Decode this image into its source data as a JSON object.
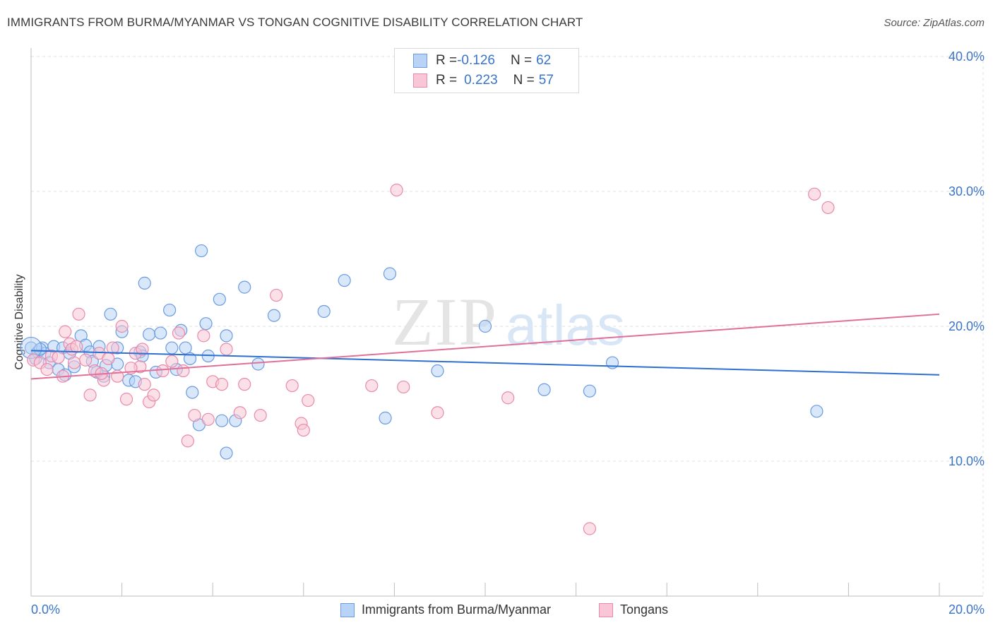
{
  "title": "IMMIGRANTS FROM BURMA/MYANMAR VS TONGAN COGNITIVE DISABILITY CORRELATION CHART",
  "source": "Source: ZipAtlas.com",
  "watermark": {
    "zip": "ZIP",
    "atlas": "atlas"
  },
  "colors": {
    "blue_fill": "#b8d3f5",
    "blue_stroke": "#6a9be0",
    "blue_line": "#2e6fd0",
    "pink_fill": "#f8c6d6",
    "pink_stroke": "#e98aaa",
    "pink_line": "#e0709a",
    "tick_text": "#3a74c8",
    "grid": "#e2e2e2"
  },
  "legend": {
    "rows": [
      {
        "r_label": "R = ",
        "r_value": "-0.126",
        "n_label": "N = ",
        "n_value": "62"
      },
      {
        "r_label": "R = ",
        "r_value": "0.223",
        "n_label": "N = ",
        "n_value": "57"
      }
    ],
    "bottom": [
      "Immigrants from Burma/Myanmar",
      "Tongans"
    ]
  },
  "chart_data": {
    "type": "scatter",
    "title": "IMMIGRANTS FROM BURMA/MYANMAR VS TONGAN COGNITIVE DISABILITY CORRELATION CHART",
    "xlabel": "",
    "ylabel": "Cognitive Disability",
    "xlim": [
      0,
      20
    ],
    "ylim": [
      0,
      41
    ],
    "x_tick_labels": [
      "0.0%",
      "20.0%"
    ],
    "y_ticks": [
      10,
      20,
      30,
      40
    ],
    "y_tick_labels": [
      "10.0%",
      "20.0%",
      "30.0%",
      "40.0%"
    ],
    "grid": true,
    "legend_placement": "top-center",
    "series": [
      {
        "name": "Immigrants from Burma/Myanmar",
        "r": -0.126,
        "n": 62,
        "trend": {
          "x": [
            0,
            20
          ],
          "y": [
            18.2,
            16.4
          ]
        },
        "points": [
          [
            0.0,
            18.4
          ],
          [
            0.1,
            17.6
          ],
          [
            0.15,
            18.1
          ],
          [
            0.25,
            18.4
          ],
          [
            0.3,
            18.0
          ],
          [
            0.4,
            17.3
          ],
          [
            0.5,
            18.5
          ],
          [
            0.6,
            16.8
          ],
          [
            0.7,
            18.4
          ],
          [
            0.75,
            16.4
          ],
          [
            0.85,
            18.0
          ],
          [
            0.95,
            17.0
          ],
          [
            1.1,
            19.3
          ],
          [
            1.2,
            18.6
          ],
          [
            1.3,
            18.1
          ],
          [
            1.35,
            17.4
          ],
          [
            1.5,
            18.5
          ],
          [
            1.6,
            16.3
          ],
          [
            1.75,
            20.9
          ],
          [
            1.9,
            18.4
          ],
          [
            1.9,
            17.2
          ],
          [
            2.0,
            19.6
          ],
          [
            2.15,
            16.0
          ],
          [
            2.4,
            18.1
          ],
          [
            2.45,
            17.8
          ],
          [
            2.5,
            23.2
          ],
          [
            2.6,
            19.4
          ],
          [
            2.75,
            16.6
          ],
          [
            2.85,
            19.5
          ],
          [
            3.05,
            21.2
          ],
          [
            3.1,
            18.4
          ],
          [
            3.2,
            16.8
          ],
          [
            3.3,
            19.7
          ],
          [
            3.4,
            18.4
          ],
          [
            3.5,
            17.6
          ],
          [
            3.55,
            15.1
          ],
          [
            3.7,
            12.7
          ],
          [
            3.75,
            25.6
          ],
          [
            3.85,
            20.2
          ],
          [
            3.9,
            17.8
          ],
          [
            4.15,
            22.0
          ],
          [
            4.2,
            13.0
          ],
          [
            4.3,
            19.3
          ],
          [
            4.3,
            10.6
          ],
          [
            4.5,
            13.0
          ],
          [
            4.7,
            22.9
          ],
          [
            5.0,
            17.2
          ],
          [
            5.35,
            20.8
          ],
          [
            6.45,
            21.1
          ],
          [
            6.9,
            23.4
          ],
          [
            7.8,
            13.2
          ],
          [
            7.9,
            23.9
          ],
          [
            8.95,
            16.7
          ],
          [
            10.0,
            20.0
          ],
          [
            11.3,
            15.3
          ],
          [
            12.3,
            15.2
          ],
          [
            12.8,
            17.3
          ],
          [
            17.3,
            13.7
          ],
          [
            1.65,
            17.1
          ],
          [
            2.3,
            15.9
          ],
          [
            0.2,
            18.3
          ],
          [
            1.45,
            16.6
          ]
        ]
      },
      {
        "name": "Tongans",
        "r": 0.223,
        "n": 57,
        "trend": {
          "x": [
            0,
            20
          ],
          "y": [
            16.1,
            20.9
          ]
        },
        "points": [
          [
            0.05,
            17.5
          ],
          [
            0.2,
            17.3
          ],
          [
            0.35,
            16.8
          ],
          [
            0.45,
            17.8
          ],
          [
            0.6,
            17.7
          ],
          [
            0.7,
            16.3
          ],
          [
            0.75,
            19.6
          ],
          [
            0.85,
            18.7
          ],
          [
            0.9,
            18.3
          ],
          [
            1.05,
            20.9
          ],
          [
            1.2,
            17.5
          ],
          [
            1.3,
            14.9
          ],
          [
            1.4,
            16.7
          ],
          [
            1.5,
            18.0
          ],
          [
            1.6,
            16.0
          ],
          [
            1.7,
            17.6
          ],
          [
            1.8,
            18.4
          ],
          [
            1.9,
            16.3
          ],
          [
            2.0,
            20.0
          ],
          [
            2.1,
            14.6
          ],
          [
            2.3,
            18.0
          ],
          [
            2.4,
            17.0
          ],
          [
            2.5,
            15.7
          ],
          [
            2.6,
            14.4
          ],
          [
            2.7,
            14.9
          ],
          [
            2.9,
            16.7
          ],
          [
            3.1,
            17.4
          ],
          [
            3.25,
            19.5
          ],
          [
            3.45,
            11.5
          ],
          [
            3.6,
            13.4
          ],
          [
            3.8,
            19.3
          ],
          [
            3.9,
            13.1
          ],
          [
            4.0,
            15.9
          ],
          [
            4.2,
            15.7
          ],
          [
            4.3,
            18.3
          ],
          [
            4.6,
            13.6
          ],
          [
            4.7,
            15.7
          ],
          [
            5.05,
            13.4
          ],
          [
            5.4,
            22.3
          ],
          [
            5.75,
            15.6
          ],
          [
            5.95,
            12.8
          ],
          [
            6.0,
            12.3
          ],
          [
            6.1,
            14.5
          ],
          [
            7.5,
            15.6
          ],
          [
            8.05,
            30.1
          ],
          [
            8.2,
            15.5
          ],
          [
            8.95,
            13.6
          ],
          [
            10.5,
            14.7
          ],
          [
            12.3,
            5.0
          ],
          [
            17.25,
            29.8
          ],
          [
            17.55,
            28.8
          ],
          [
            1.55,
            16.5
          ],
          [
            2.45,
            18.3
          ],
          [
            0.95,
            17.3
          ],
          [
            3.35,
            16.7
          ],
          [
            1.0,
            18.5
          ],
          [
            2.2,
            16.9
          ]
        ]
      }
    ]
  }
}
